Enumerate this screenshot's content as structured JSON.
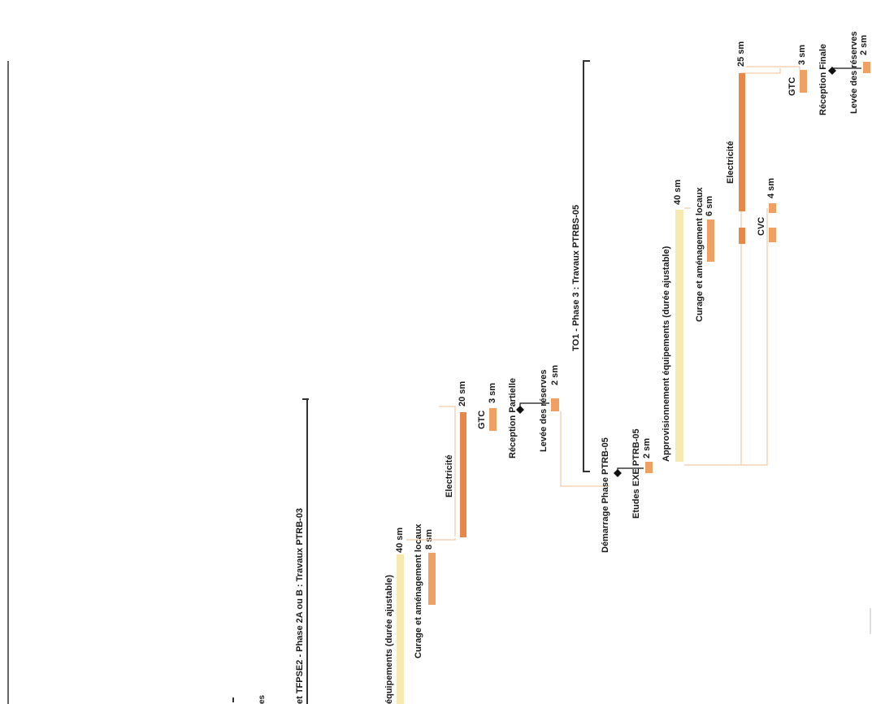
{
  "phase_titles": {
    "phase2": "et TFPSE2 - Phase 2A ou B : Travaux PTRB-03",
    "phase3": "TO1 - Phase 3 : Travaux PTRBS-05"
  },
  "phase2_tasks": {
    "approvisionnement": "équipements (durée ajustable)",
    "appro_duration": "40 sm",
    "curage": "Curage et aménagement locaux",
    "curage_duration": "8 sm",
    "electricite": "Electricité",
    "electricite_duration": "20 sm",
    "gtc": "GTC",
    "gtc_duration": "3 sm",
    "reception": "Réception Partielle",
    "levee": "Levée des réserves",
    "levee_duration": "2 sm",
    "cut_label": "es"
  },
  "phase3_tasks": {
    "demarrage": "Démarrage Phase PTRB-05",
    "etudes": "Etudes EXE PTRB-05",
    "etudes_duration": "2 sm",
    "approvisionnement": "Approvisionnement équipements (durée ajustable)",
    "appro_duration": "40 sm",
    "curage": "Curage et aménagement locaux",
    "curage_duration": "6 sm",
    "electricite": "Electricité",
    "electricite_duration": "25 sm",
    "cvc": "CVC",
    "cvc_duration": "4 sm",
    "gtc": "GTC",
    "gtc_duration": "3 sm",
    "reception": "Réception Finale",
    "levee": "Levée des réserves",
    "levee_duration": "2 sm"
  },
  "colors": {
    "bar": "#f0a062",
    "bar_dark": "#e8874a",
    "bar_light": "#f6eab0",
    "link": "#f4c9a3",
    "summary": "#333333",
    "milestone": "#111111"
  }
}
